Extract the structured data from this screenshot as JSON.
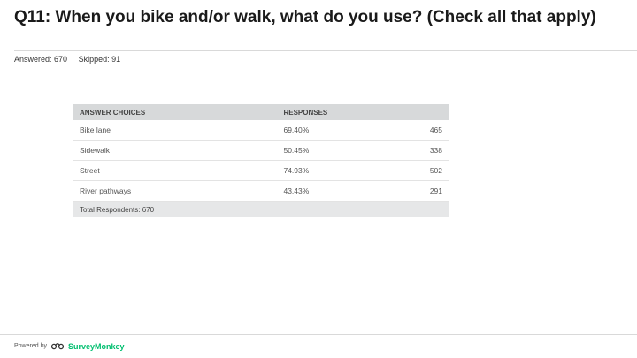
{
  "title": "Q11: When you bike and/or walk, what do you use? (Check all that apply)",
  "stats": {
    "answered": "Answered: 670",
    "skipped": "Skipped: 91"
  },
  "table": {
    "headers": [
      "ANSWER CHOICES",
      "RESPONSES"
    ],
    "rows": [
      {
        "choice": "Bike lane",
        "percent": "69.40%",
        "count": "465"
      },
      {
        "choice": "Sidewalk",
        "percent": "50.45%",
        "count": "338"
      },
      {
        "choice": "Street",
        "percent": "74.93%",
        "count": "502"
      },
      {
        "choice": "River pathways",
        "percent": "43.43%",
        "count": "291"
      }
    ],
    "total": "Total Respondents: 670"
  },
  "footer": {
    "powered_by": "Powered by",
    "brand": "SurveyMonkey",
    "logo_icon": "surveymonkey-logo-icon",
    "brand_color": "#00bf6f"
  }
}
